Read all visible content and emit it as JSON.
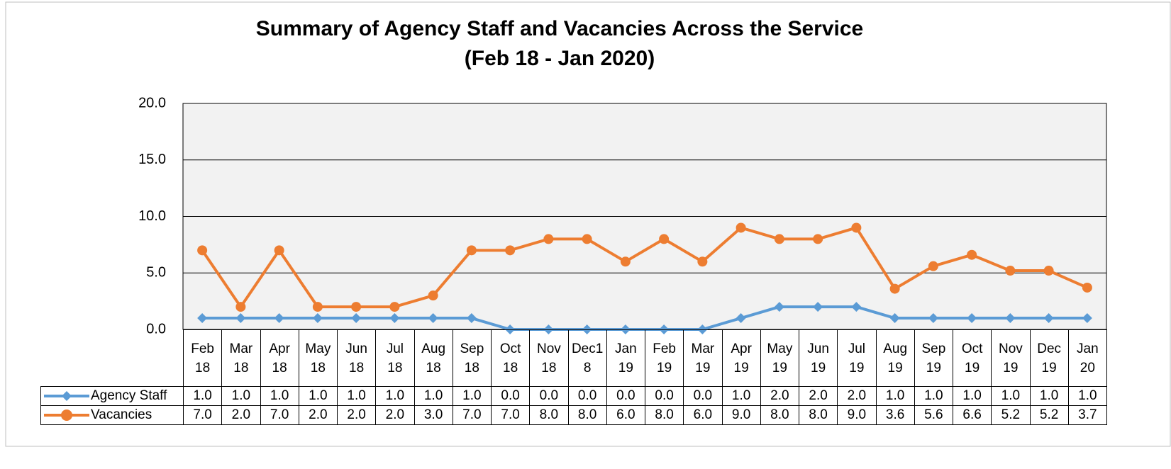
{
  "chart_data": {
    "type": "line",
    "title": "Summary of Agency Staff and Vacancies Across the Service",
    "subtitle": "(Feb 18 - Jan 2020)",
    "categories": [
      "Feb 18",
      "Mar 18",
      "Apr 18",
      "May 18",
      "Jun 18",
      "Jul 18",
      "Aug 18",
      "Sep 18",
      "Oct 18",
      "Nov 18",
      "Dec18",
      "Jan 19",
      "Feb 19",
      "Mar 19",
      "Apr 19",
      "May 19",
      "Jun 19",
      "Jul 19",
      "Aug 19",
      "Sep 19",
      "Oct 19",
      "Nov 19",
      "Dec 19",
      "Jan 20"
    ],
    "series": [
      {
        "name": "Agency Staff",
        "color": "#5b9bd5",
        "marker": "diamond",
        "values": [
          1,
          1,
          1,
          1,
          1,
          1,
          1,
          1,
          0,
          0,
          0,
          0,
          0,
          0,
          1,
          2,
          2,
          2,
          1,
          1,
          1,
          1,
          1,
          1
        ],
        "value_labels": [
          "1.0",
          "1.0",
          "1.0",
          "1.0",
          "1.0",
          "1.0",
          "1.0",
          "1.0",
          "0.0",
          "0.0",
          "0.0",
          "0.0",
          "0.0",
          "0.0",
          "1.0",
          "2.0",
          "2.0",
          "2.0",
          "1.0",
          "1.0",
          "1.0",
          "1.0",
          "1.0",
          "1.0"
        ]
      },
      {
        "name": "Vacancies",
        "color": "#ed7d31",
        "marker": "circle",
        "values": [
          7,
          2,
          7,
          2,
          2,
          2,
          3,
          7,
          7,
          8,
          8,
          6,
          8,
          6,
          9,
          8,
          8,
          9,
          3.6,
          5.6,
          6.6,
          5.2,
          5.2,
          3.7
        ],
        "value_labels": [
          "7.0",
          "2.0",
          "7.0",
          "2.0",
          "2.0",
          "2.0",
          "3.0",
          "7.0",
          "7.0",
          "8.0",
          "8.0",
          "6.0",
          "8.0",
          "6.0",
          "9.0",
          "8.0",
          "8.0",
          "9.0",
          "3.6",
          "5.6",
          "6.6",
          "5.2",
          "5.2",
          "3.7"
        ]
      }
    ],
    "ylim": [
      0,
      20
    ],
    "yticks": [
      {
        "value": 0,
        "label": "0.0"
      },
      {
        "value": 5,
        "label": "5.0"
      },
      {
        "value": 10,
        "label": "10.0"
      },
      {
        "value": 15,
        "label": "15.0"
      },
      {
        "value": 20,
        "label": "20.0"
      }
    ],
    "grid": true
  }
}
